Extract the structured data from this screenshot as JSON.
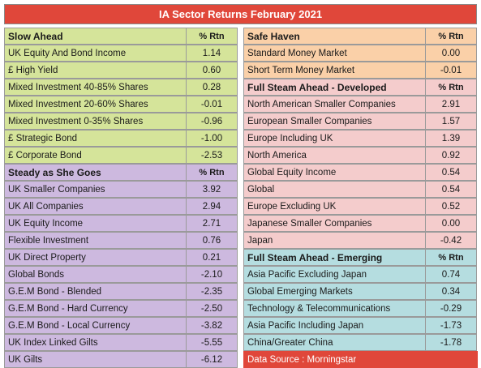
{
  "title": "IA Sector Returns February 2021",
  "left": [
    {
      "header": "Slow Ahead",
      "rtn_label": "% Rtn",
      "theme": "green",
      "rows": [
        {
          "name": "UK Equity And Bond Income",
          "value": "1.14"
        },
        {
          "name": "£ High Yield",
          "value": "0.60"
        },
        {
          "name": "Mixed Investment 40-85% Shares",
          "value": "0.28"
        },
        {
          "name": "Mixed Investment 20-60% Shares",
          "value": "-0.01"
        },
        {
          "name": "Mixed Investment 0-35% Shares",
          "value": "-0.96"
        },
        {
          "name": "£ Strategic Bond",
          "value": "-1.00"
        },
        {
          "name": "£ Corporate Bond",
          "value": "-2.53"
        }
      ]
    },
    {
      "header": "Steady as She Goes",
      "rtn_label": "% Rtn",
      "theme": "purple",
      "rows": [
        {
          "name": "UK Smaller Companies",
          "value": "3.92"
        },
        {
          "name": "UK All Companies",
          "value": "2.94"
        },
        {
          "name": "UK Equity Income",
          "value": "2.71"
        },
        {
          "name": "Flexible Investment",
          "value": "0.76"
        },
        {
          "name": "UK Direct Property",
          "value": "0.21"
        },
        {
          "name": "Global Bonds",
          "value": "-2.10"
        },
        {
          "name": "G.E.M Bond - Blended",
          "value": "-2.35"
        },
        {
          "name": "G.E.M Bond - Hard Currency",
          "value": "-2.50"
        },
        {
          "name": "G.E.M Bond - Local Currency",
          "value": "-3.82"
        },
        {
          "name": "UK Index Linked Gilts",
          "value": "-5.55"
        },
        {
          "name": "UK Gilts",
          "value": "-6.12"
        }
      ]
    }
  ],
  "right": [
    {
      "header": "Safe Haven",
      "rtn_label": "% Rtn",
      "theme": "peach",
      "rows": [
        {
          "name": "Standard Money Market",
          "value": "0.00"
        },
        {
          "name": "Short Term Money Market",
          "value": "-0.01"
        }
      ]
    },
    {
      "header": "Full Steam Ahead - Developed",
      "rtn_label": "% Rtn",
      "theme": "pink",
      "rows": [
        {
          "name": "North American Smaller Companies",
          "value": "2.91"
        },
        {
          "name": "European Smaller Companies",
          "value": "1.57"
        },
        {
          "name": "Europe Including UK",
          "value": "1.39"
        },
        {
          "name": "North America",
          "value": "0.92"
        },
        {
          "name": "Global Equity Income",
          "value": "0.54"
        },
        {
          "name": "Global",
          "value": "0.54"
        },
        {
          "name": "Europe Excluding UK",
          "value": "0.52"
        },
        {
          "name": "Japanese Smaller Companies",
          "value": "0.00"
        },
        {
          "name": "Japan",
          "value": "-0.42"
        }
      ]
    },
    {
      "header": "Full Steam Ahead - Emerging",
      "rtn_label": "% Rtn",
      "theme": "teal",
      "rows": [
        {
          "name": "Asia Pacific Excluding Japan",
          "value": "0.74"
        },
        {
          "name": "Global Emerging Markets",
          "value": "0.34"
        },
        {
          "name": "Technology & Telecommunications",
          "value": "-0.29"
        },
        {
          "name": "Asia Pacific Including Japan",
          "value": "-1.73"
        },
        {
          "name": "China/Greater China",
          "value": "-1.78"
        }
      ]
    }
  ],
  "source": "Data Source : Morningstar",
  "colors": {
    "title_bg": "#e0473a",
    "green": "#d5e49a",
    "purple": "#cdb9df",
    "peach": "#fad0a8",
    "pink": "#f4cccc",
    "teal": "#b5dde0"
  }
}
